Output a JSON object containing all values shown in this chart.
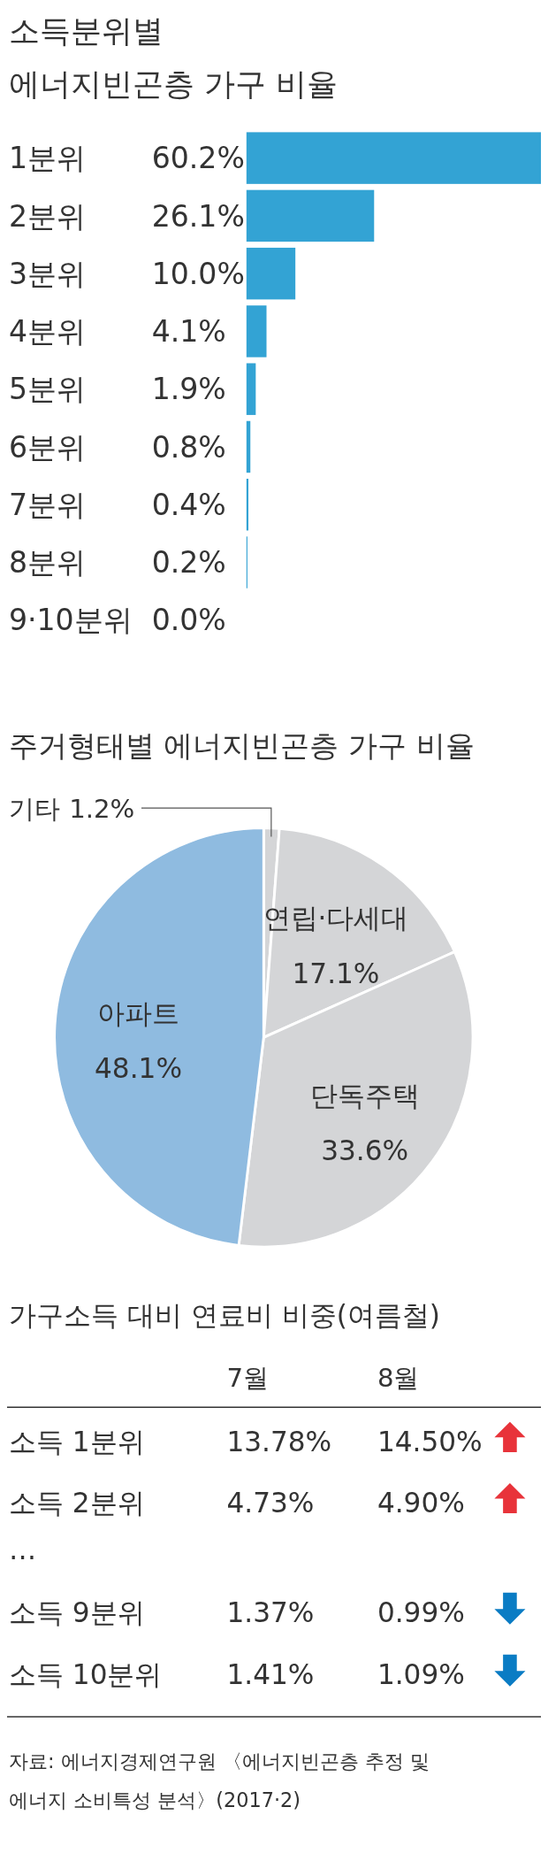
{
  "chart_data": [
    {
      "type": "bar",
      "orientation": "horizontal",
      "title": "소득분위별\n에너지빈곤층 가구 비율",
      "categories": [
        "1분위",
        "2분위",
        "3분위",
        "4분위",
        "5분위",
        "6분위",
        "7분위",
        "8분위",
        "9·10분위"
      ],
      "values": [
        60.2,
        26.1,
        10.0,
        4.1,
        1.9,
        0.8,
        0.4,
        0.2,
        0.0
      ],
      "value_labels": [
        "60.2%",
        "26.1%",
        "10.0%",
        "4.1%",
        "1.9%",
        "0.8%",
        "0.4%",
        "0.2%",
        "0.0%"
      ],
      "color": "#33a3d4"
    },
    {
      "type": "pie",
      "title": "주거형태별 에너지빈곤층 가구 비율",
      "categories": [
        "기타",
        "연립·다세대",
        "단독주택",
        "아파트"
      ],
      "values": [
        1.2,
        17.1,
        33.6,
        48.1
      ],
      "value_labels": [
        "1.2%",
        "17.1%",
        "33.6%",
        "48.1%"
      ],
      "colors": [
        "#d4d5d7",
        "#d4d5d7",
        "#d4d5d7",
        "#8fbbe0"
      ]
    },
    {
      "type": "other",
      "title": "가구소득 대비 연료비 비중(여름철)",
      "categories": [
        "소득 1분위",
        "소득 2분위",
        "…",
        "소득 9분위",
        "소득 10분위"
      ],
      "series": [
        {
          "name": "7월",
          "values": [
            13.78,
            4.73,
            null,
            1.37,
            1.41
          ],
          "value_labels": [
            "13.78%",
            "4.73%",
            null,
            "1.37%",
            "1.41%"
          ]
        },
        {
          "name": "8월",
          "values": [
            14.5,
            4.9,
            null,
            0.99,
            1.09
          ],
          "value_labels": [
            "14.50%",
            "4.90%",
            null,
            "0.99%",
            "1.09%"
          ]
        }
      ],
      "annotations": [
        "자료: 에너지경제연구원 〈에너지빈곤층 추정 및\n에너지 소비특성 분석〉(2017·2)"
      ]
    }
  ]
}
